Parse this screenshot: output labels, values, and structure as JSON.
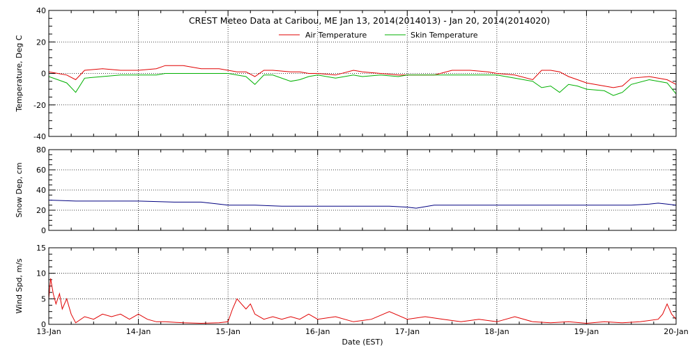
{
  "title": "CREST Meteo Data at Caribou, ME   Jan 13, 2014(2014013) - Jan 20, 2014(2014020)",
  "xlabel": "Date (EST)",
  "x_ticks": [
    "13-Jan",
    "14-Jan",
    "15-Jan",
    "16-Jan",
    "17-Jan",
    "18-Jan",
    "19-Jan",
    "20-Jan"
  ],
  "chart_data": [
    {
      "type": "line",
      "name": "temperature",
      "ylabel": "Temperature, Deg C",
      "ylim": [
        -40,
        40
      ],
      "yticks": [
        -40,
        -20,
        0,
        20,
        40
      ],
      "x": [
        13.0,
        13.1,
        13.2,
        13.3,
        13.4,
        13.6,
        13.8,
        14.0,
        14.2,
        14.3,
        14.5,
        14.7,
        14.9,
        15.0,
        15.1,
        15.2,
        15.3,
        15.4,
        15.5,
        15.7,
        15.8,
        15.9,
        16.0,
        16.2,
        16.4,
        16.5,
        16.7,
        16.9,
        17.0,
        17.1,
        17.3,
        17.5,
        17.7,
        17.9,
        18.0,
        18.2,
        18.4,
        18.5,
        18.6,
        18.7,
        18.8,
        18.9,
        19.0,
        19.2,
        19.3,
        19.4,
        19.5,
        19.7,
        19.9,
        20.0
      ],
      "series": [
        {
          "name": "Air Temperature",
          "color": "#e00000",
          "values": [
            1,
            0,
            -1,
            -4,
            2,
            3,
            2,
            2,
            3,
            5,
            5,
            3,
            3,
            2,
            1,
            1,
            -2,
            2,
            2,
            1,
            1,
            0,
            0,
            -1,
            2,
            1,
            0,
            -1,
            -1,
            -1,
            -1,
            2,
            2,
            1,
            0,
            -1,
            -4,
            2,
            2,
            1,
            -2,
            -4,
            -6,
            -8,
            -9,
            -8,
            -3,
            -2,
            -4,
            -7
          ]
        },
        {
          "name": "Skin Temperature",
          "color": "#00b000",
          "values": [
            -2,
            -4,
            -6,
            -12,
            -3,
            -2,
            -1,
            -1,
            -1,
            0,
            0,
            0,
            0,
            0,
            -1,
            -2,
            -7,
            -1,
            -1,
            -5,
            -4,
            -2,
            -1,
            -3,
            -1,
            -2,
            -1,
            -2,
            -1,
            -1,
            -1,
            -1,
            -1,
            -1,
            -1,
            -3,
            -5,
            -9,
            -8,
            -12,
            -7,
            -8,
            -10,
            -11,
            -14,
            -12,
            -7,
            -4,
            -6,
            -13
          ]
        }
      ]
    },
    {
      "type": "line",
      "name": "snow-depth",
      "ylabel": "Snow Dep, cm",
      "ylim": [
        0,
        80
      ],
      "yticks": [
        0,
        20,
        40,
        60,
        80
      ],
      "x": [
        13.0,
        13.3,
        13.6,
        14.0,
        14.4,
        14.7,
        14.9,
        15.0,
        15.3,
        15.6,
        16.0,
        16.4,
        16.8,
        17.0,
        17.1,
        17.3,
        17.5,
        17.7,
        18.0,
        18.5,
        19.0,
        19.5,
        19.7,
        19.8,
        19.9,
        20.0
      ],
      "series": [
        {
          "name": "Snow Depth",
          "color": "#000080",
          "values": [
            30,
            29,
            29,
            29,
            28,
            28,
            26,
            25,
            25,
            24,
            24,
            24,
            24,
            23,
            22,
            25,
            25,
            25,
            25,
            25,
            25,
            25,
            26,
            27,
            26,
            25
          ]
        }
      ]
    },
    {
      "type": "line",
      "name": "wind-speed",
      "ylabel": "Wind Spd, m/s",
      "ylim": [
        0,
        15
      ],
      "yticks": [
        0,
        5,
        10,
        15
      ],
      "x": [
        13.0,
        13.02,
        13.05,
        13.08,
        13.12,
        13.15,
        13.2,
        13.25,
        13.3,
        13.4,
        13.5,
        13.6,
        13.7,
        13.8,
        13.9,
        14.0,
        14.1,
        14.2,
        14.3,
        14.5,
        14.7,
        14.9,
        15.0,
        15.05,
        15.1,
        15.15,
        15.2,
        15.25,
        15.3,
        15.4,
        15.5,
        15.6,
        15.7,
        15.8,
        15.9,
        16.0,
        16.2,
        16.4,
        16.6,
        16.8,
        17.0,
        17.2,
        17.4,
        17.6,
        17.8,
        18.0,
        18.2,
        18.4,
        18.6,
        18.8,
        19.0,
        19.2,
        19.4,
        19.6,
        19.8,
        19.85,
        19.9,
        19.95,
        20.0
      ],
      "series": [
        {
          "name": "Wind Speed",
          "color": "#e00000",
          "values": [
            5,
            9,
            6,
            4,
            6,
            3,
            5,
            2,
            0.3,
            1.5,
            1,
            2,
            1.5,
            2,
            1,
            2,
            1,
            0.5,
            0.5,
            0.3,
            0.2,
            0.3,
            0.5,
            3,
            5,
            4,
            3,
            4,
            2,
            1,
            1.5,
            1,
            1.5,
            1,
            2,
            1,
            1.5,
            0.5,
            1,
            2.5,
            1,
            1.5,
            1,
            0.5,
            1,
            0.5,
            1.5,
            0.5,
            0.3,
            0.5,
            0.2,
            0.5,
            0.3,
            0.5,
            1,
            2,
            4,
            2,
            1
          ]
        }
      ]
    }
  ]
}
